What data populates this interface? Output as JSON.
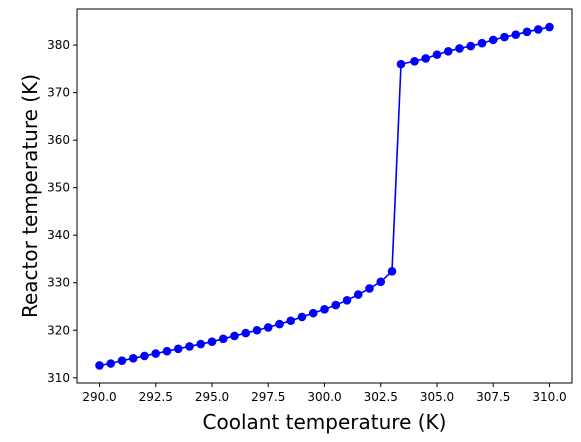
{
  "chart_data": {
    "type": "line",
    "title": "",
    "xlabel": "Coolant temperature (K)",
    "ylabel": "Reactor temperature (K)",
    "xlim": [
      289.0,
      311.0
    ],
    "ylim": [
      308.9,
      387.6
    ],
    "xticks": [
      290.0,
      292.5,
      295.0,
      297.5,
      300.0,
      302.5,
      305.0,
      307.5,
      310.0
    ],
    "xtick_labels": [
      "290.0",
      "292.5",
      "295.0",
      "297.5",
      "300.0",
      "302.5",
      "305.0",
      "307.5",
      "310.0"
    ],
    "yticks": [
      310,
      320,
      330,
      340,
      350,
      360,
      370,
      380
    ],
    "ytick_labels": [
      "310",
      "320",
      "330",
      "340",
      "350",
      "360",
      "370",
      "380"
    ],
    "grid": false,
    "legend": "none",
    "series": [
      {
        "color": "#0000ff",
        "marker": "circle",
        "x": [
          290.0,
          290.5,
          291.0,
          291.5,
          292.0,
          292.5,
          293.0,
          293.5,
          294.0,
          294.5,
          295.0,
          295.5,
          296.0,
          296.5,
          297.0,
          297.5,
          298.0,
          298.5,
          299.0,
          299.5,
          300.0,
          300.5,
          301.0,
          301.5,
          302.0,
          302.5,
          303.0,
          303.4,
          304.0,
          304.5,
          305.0,
          305.5,
          306.0,
          306.5,
          307.0,
          307.5,
          308.0,
          308.5,
          309.0,
          309.5,
          310.0
        ],
        "y": [
          312.6,
          313.0,
          313.6,
          314.1,
          314.6,
          315.1,
          315.6,
          316.1,
          316.6,
          317.1,
          317.6,
          318.2,
          318.8,
          319.4,
          320.0,
          320.6,
          321.3,
          322.0,
          322.8,
          323.6,
          324.4,
          325.3,
          326.3,
          327.5,
          328.8,
          330.2,
          332.4,
          376.0,
          376.6,
          377.2,
          378.0,
          378.7,
          379.3,
          379.8,
          380.4,
          381.1,
          381.7,
          382.2,
          382.8,
          383.3,
          383.8
        ]
      }
    ]
  }
}
